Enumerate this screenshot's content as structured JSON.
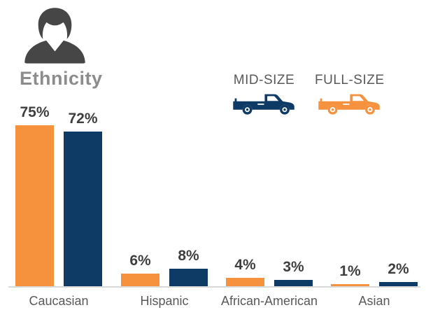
{
  "header": {
    "title": "Ethnicity"
  },
  "legend": {
    "items": [
      {
        "label": "MID-SIZE",
        "icon": "mid-size-truck-icon",
        "color": "#0E3A66"
      },
      {
        "label": "FULL-SIZE",
        "icon": "full-size-truck-icon",
        "color": "#F6913E"
      }
    ]
  },
  "chart_data": {
    "type": "bar",
    "title": "Ethnicity",
    "categories": [
      "Caucasian",
      "Hispanic",
      "African-American",
      "Asian"
    ],
    "series": [
      {
        "name": "FULL-SIZE",
        "color": "#F6913E",
        "values": [
          75,
          6,
          4,
          1
        ],
        "value_labels": [
          "75%",
          "6%",
          "4%",
          "1%"
        ]
      },
      {
        "name": "MID-SIZE",
        "color": "#0E3A66",
        "values": [
          72,
          8,
          3,
          2
        ],
        "value_labels": [
          "72%",
          "8%",
          "3%",
          "2%"
        ]
      }
    ],
    "xlabel": "",
    "ylabel": "",
    "unit": "percent",
    "ylim": [
      0,
      80
    ],
    "grid": false,
    "y_axis_shown": false,
    "value_labels_shown": true,
    "legend_position": "top-right"
  },
  "colors": {
    "full_size_orange": "#F6913E",
    "mid_size_navy": "#0E3A66",
    "title_text": "#8C8C8C",
    "person_icon": "#464646",
    "value_label_text": "#3F3F3F",
    "category_text": "#595959",
    "legend_text": "#595959",
    "baseline": "#D9D9D9",
    "background": "#FFFFFF"
  }
}
